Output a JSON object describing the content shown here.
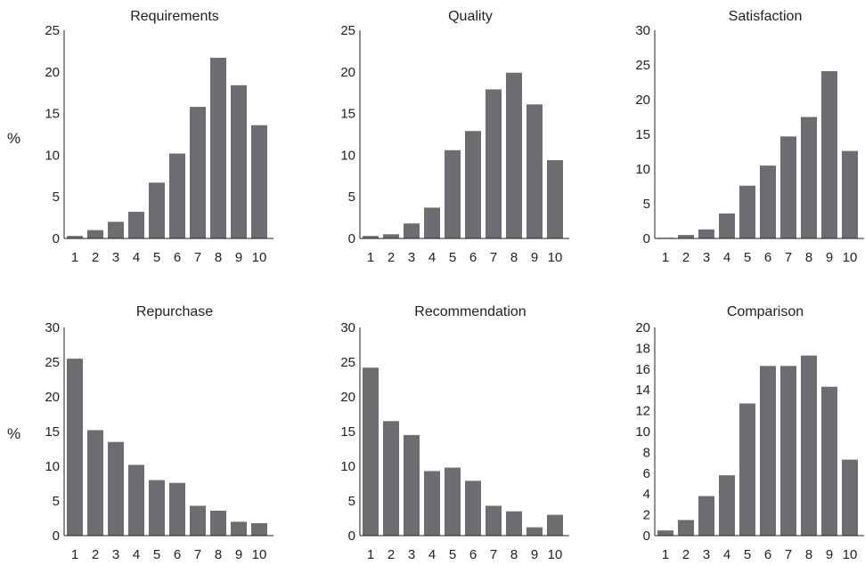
{
  "row_labels": [
    "%",
    "%"
  ],
  "colors": {
    "bar": "#6c6d70",
    "axis": "#222222"
  },
  "chart_data": [
    {
      "type": "bar",
      "title": "Requirements",
      "categories": [
        "1",
        "2",
        "3",
        "4",
        "5",
        "6",
        "7",
        "8",
        "9",
        "10"
      ],
      "values": [
        0.3,
        1.0,
        2.0,
        3.2,
        6.7,
        10.2,
        15.8,
        21.7,
        18.4,
        13.6
      ],
      "ylim": [
        0,
        25
      ],
      "yticks": [
        0,
        5,
        10,
        15,
        20,
        25
      ]
    },
    {
      "type": "bar",
      "title": "Quality",
      "categories": [
        "1",
        "2",
        "3",
        "4",
        "5",
        "6",
        "7",
        "8",
        "9",
        "10"
      ],
      "values": [
        0.3,
        0.5,
        1.8,
        3.7,
        10.6,
        12.9,
        17.9,
        19.9,
        16.1,
        9.4
      ],
      "ylim": [
        0,
        25
      ],
      "yticks": [
        0,
        5,
        10,
        15,
        20,
        25
      ]
    },
    {
      "type": "bar",
      "title": "Satisfaction",
      "categories": [
        "1",
        "2",
        "3",
        "4",
        "5",
        "6",
        "7",
        "8",
        "9",
        "10"
      ],
      "values": [
        0.1,
        0.5,
        1.3,
        3.6,
        7.6,
        10.5,
        14.7,
        17.5,
        24.1,
        12.6
      ],
      "ylim": [
        0,
        30
      ],
      "yticks": [
        0,
        5,
        10,
        15,
        20,
        25,
        30
      ]
    },
    {
      "type": "bar",
      "title": "Repurchase",
      "categories": [
        "1",
        "2",
        "3",
        "4",
        "5",
        "6",
        "7",
        "8",
        "9",
        "10"
      ],
      "values": [
        25.5,
        15.2,
        13.5,
        10.2,
        8.0,
        7.6,
        4.3,
        3.6,
        2.0,
        1.8
      ],
      "ylim": [
        0,
        30
      ],
      "yticks": [
        0,
        5,
        10,
        15,
        20,
        25,
        30
      ]
    },
    {
      "type": "bar",
      "title": "Recommendation",
      "categories": [
        "1",
        "2",
        "3",
        "4",
        "5",
        "6",
        "7",
        "8",
        "9",
        "10"
      ],
      "values": [
        24.2,
        16.5,
        14.5,
        9.3,
        9.8,
        7.9,
        4.3,
        3.5,
        1.2,
        3.0
      ],
      "ylim": [
        0,
        30
      ],
      "yticks": [
        0,
        5,
        10,
        15,
        20,
        25,
        30
      ]
    },
    {
      "type": "bar",
      "title": "Comparison",
      "categories": [
        "1",
        "2",
        "3",
        "4",
        "5",
        "6",
        "7",
        "8",
        "9",
        "10"
      ],
      "values": [
        0.5,
        1.5,
        3.8,
        5.8,
        12.7,
        16.3,
        16.3,
        17.3,
        14.3,
        7.3
      ],
      "ylim": [
        0,
        20
      ],
      "yticks": [
        0,
        2,
        4,
        6,
        8,
        10,
        12,
        14,
        16,
        18,
        20
      ]
    }
  ]
}
